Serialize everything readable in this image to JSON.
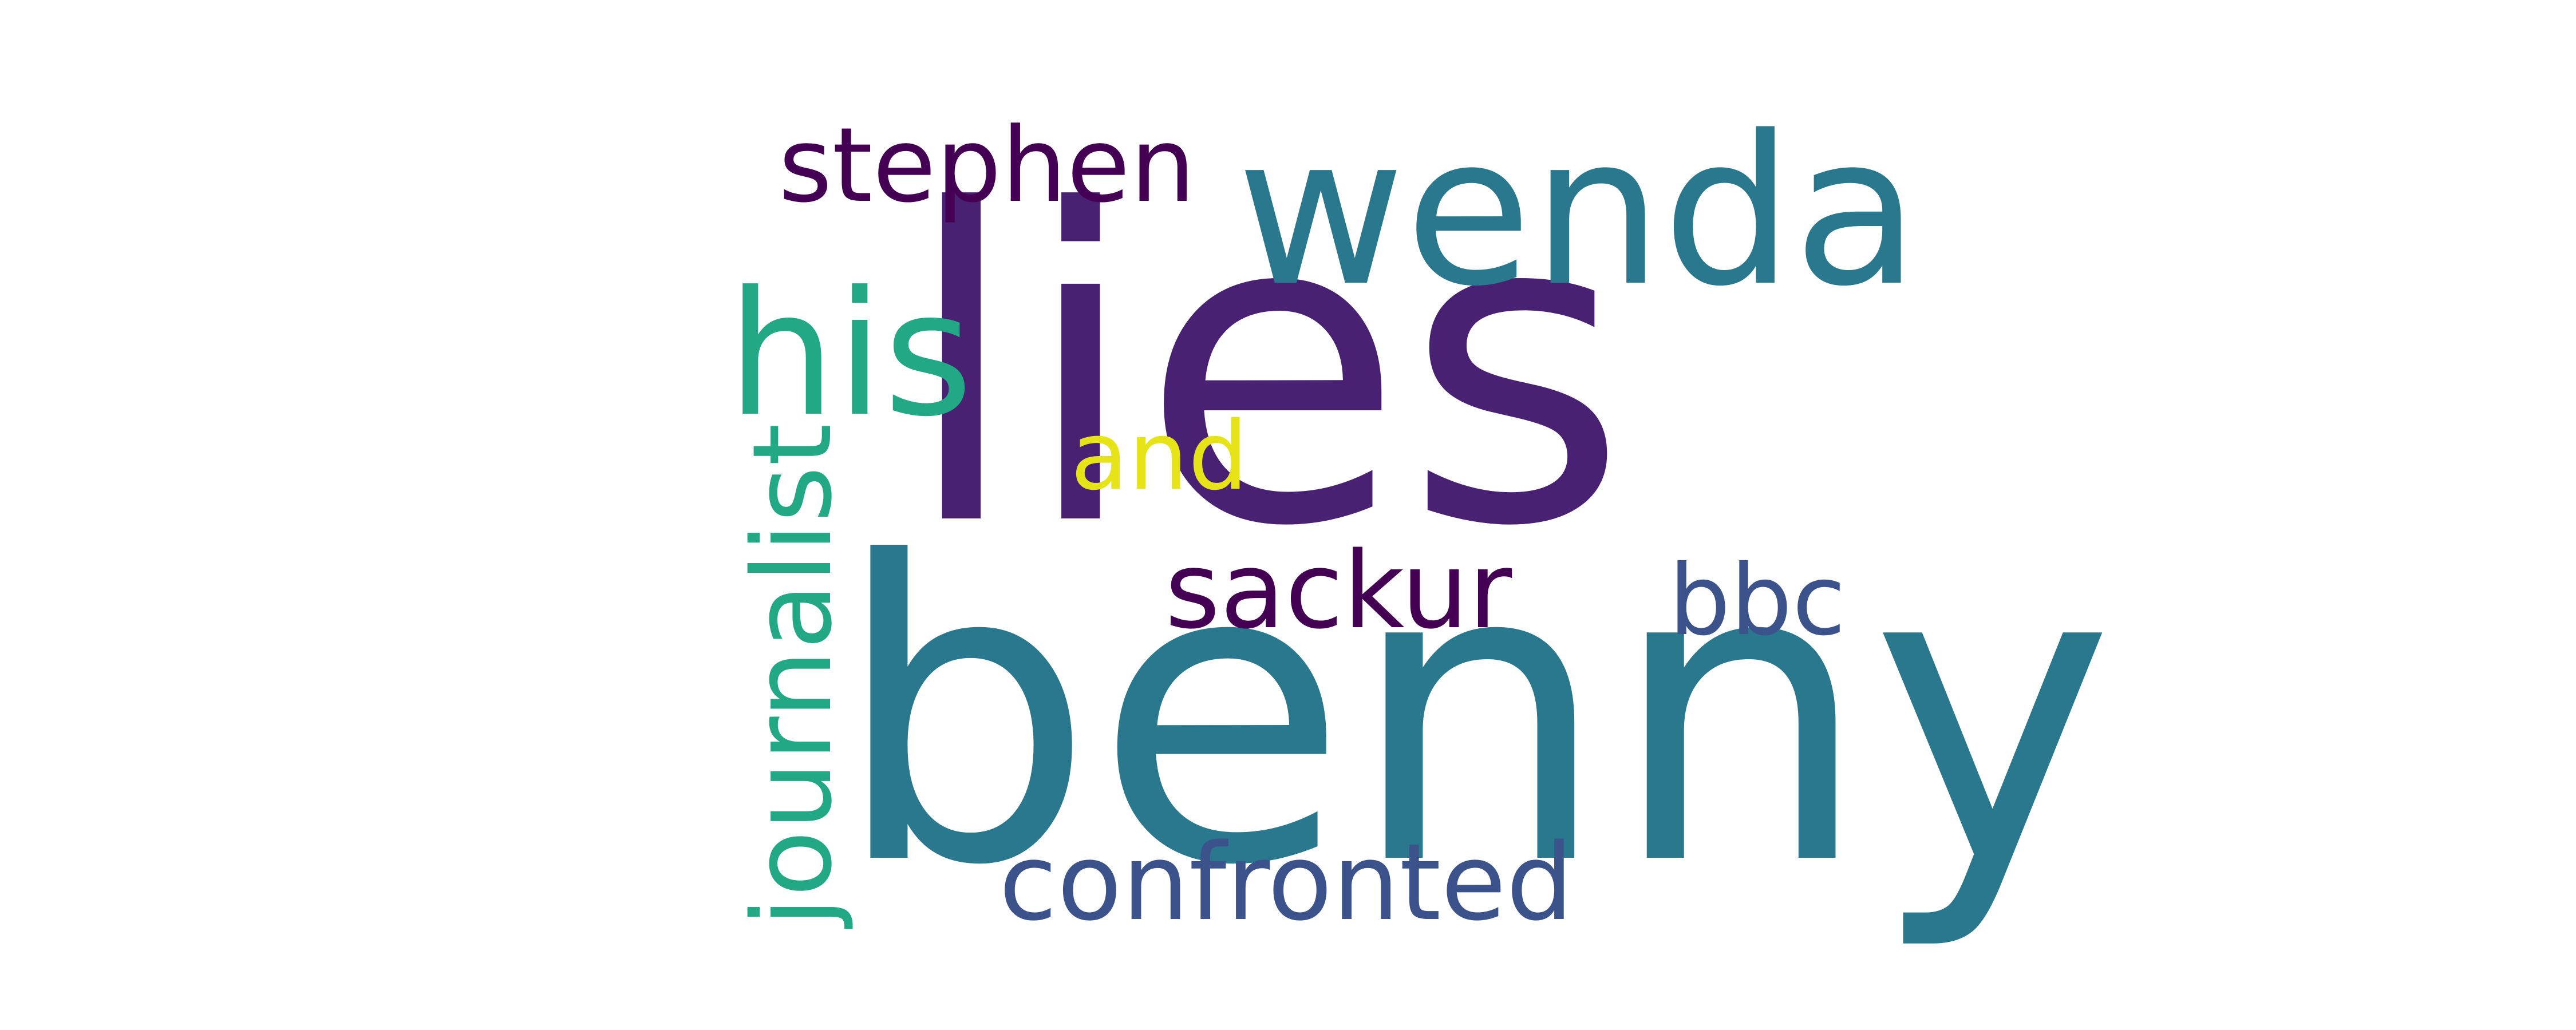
{
  "words": [
    {
      "text": "lies",
      "color": "#482173",
      "rotated": false
    },
    {
      "text": "benny",
      "color": "#2a788e",
      "rotated": false
    },
    {
      "text": "wenda",
      "color": "#2a788e",
      "rotated": false
    },
    {
      "text": "journalist",
      "color": "#22a884",
      "rotated": true
    },
    {
      "text": "his",
      "color": "#22a884",
      "rotated": false
    },
    {
      "text": "stephen",
      "color": "#440154",
      "rotated": false
    },
    {
      "text": "sackur",
      "color": "#440154",
      "rotated": false
    },
    {
      "text": "confronted",
      "color": "#3b528b",
      "rotated": false
    },
    {
      "text": "bbc",
      "color": "#3b528b",
      "rotated": false
    },
    {
      "text": "and",
      "color": "#e6e419",
      "rotated": false
    }
  ]
}
